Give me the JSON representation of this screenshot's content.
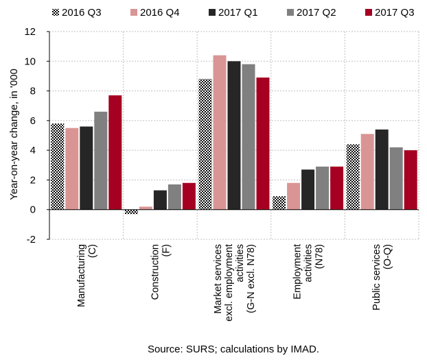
{
  "chart_data": {
    "type": "bar",
    "categories": [
      [
        "Manufacturing",
        "(C)"
      ],
      [
        "Construction",
        "(F)"
      ],
      [
        "Market services",
        "excl. employment",
        "activities",
        "(G-N excl. N78)"
      ],
      [
        "Employment",
        "activities",
        "(N78)"
      ],
      [
        "Public services",
        "(O-Q)"
      ]
    ],
    "series": [
      {
        "name": "2016 Q3",
        "values": [
          5.8,
          -0.3,
          8.8,
          0.9,
          4.4
        ],
        "color": "#000000",
        "pattern": "checker"
      },
      {
        "name": "2016 Q4",
        "values": [
          5.5,
          0.2,
          10.4,
          1.8,
          5.1
        ],
        "color": "#d99594"
      },
      {
        "name": "2017 Q1",
        "values": [
          5.6,
          1.3,
          10.0,
          2.7,
          5.4
        ],
        "color": "#262626"
      },
      {
        "name": "2017 Q2",
        "values": [
          6.6,
          1.7,
          9.8,
          2.9,
          4.2
        ],
        "color": "#808080"
      },
      {
        "name": "2017 Q3",
        "values": [
          7.7,
          1.8,
          8.9,
          2.9,
          4.0
        ],
        "color": "#a50021"
      }
    ],
    "ylabel": "Year-on-year change, in '000",
    "ylim": [
      -2,
      12
    ],
    "yticks": [
      -2,
      0,
      2,
      4,
      6,
      8,
      10,
      12
    ],
    "grid": true,
    "legend": "top",
    "source": "Source: SURS; calculations by IMAD."
  }
}
